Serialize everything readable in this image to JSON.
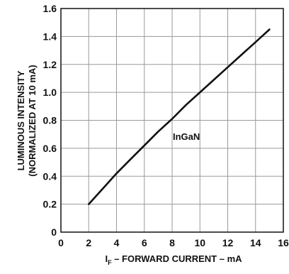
{
  "chart_data": {
    "type": "line",
    "xlabel": {
      "prefix": "I",
      "subscript": "F",
      "rest": " – FORWARD CURRENT – mA"
    },
    "ylabel": {
      "line1": "LUMINOUS INTENSITY",
      "line2": "(NORMALIZED AT 10 mA)"
    },
    "xlim": [
      0,
      16
    ],
    "ylim": [
      0,
      1.6
    ],
    "xticks": [
      "0",
      "2",
      "4",
      "6",
      "8",
      "10",
      "12",
      "14",
      "16"
    ],
    "yticks": [
      "0",
      "0.2",
      "0.4",
      "0.6",
      "0.8",
      "1.0",
      "1.2",
      "1.4",
      "1.6"
    ],
    "grid": true,
    "annotation": "InGaN",
    "series": [
      {
        "color": "#111111",
        "x": [
          2,
          3,
          4,
          5,
          6,
          7,
          8,
          9,
          10,
          11,
          12,
          13,
          14,
          15
        ],
        "y": [
          0.2,
          0.31,
          0.42,
          0.52,
          0.62,
          0.72,
          0.81,
          0.91,
          1.0,
          1.09,
          1.18,
          1.27,
          1.36,
          1.45
        ]
      }
    ]
  }
}
